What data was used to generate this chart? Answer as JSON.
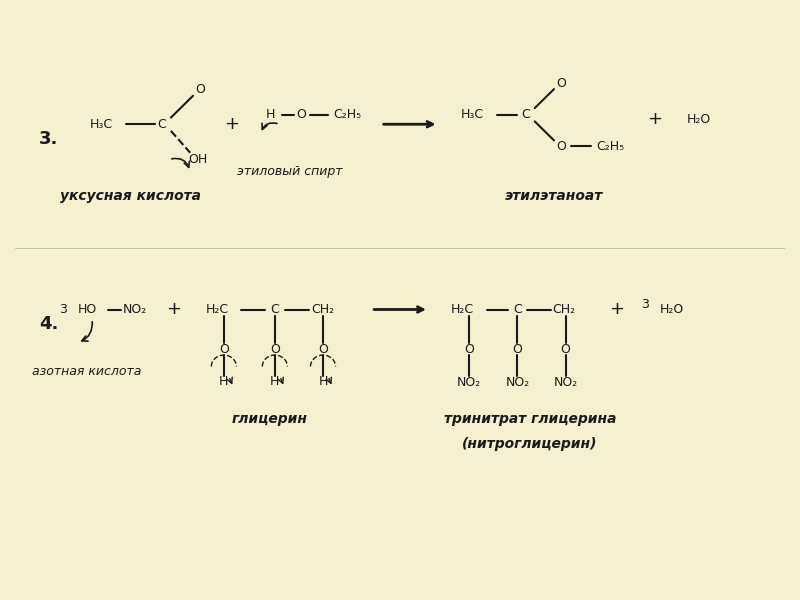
{
  "bg_color": "#f5f0d0",
  "line_color": "#1a1a1a",
  "text_color": "#1a1a1a",
  "title3": "3.",
  "title4": "4.",
  "label_acetic": "уксусная кислота",
  "label_ethanol": "этиловый спирт",
  "label_ethylethanoate": "этилэтаноат",
  "label_nitric": "азотная кислота",
  "label_glycerin": "глицерин",
  "label_nitroglycerin": "тринитрат глицерина\n(нитроглицерин)"
}
